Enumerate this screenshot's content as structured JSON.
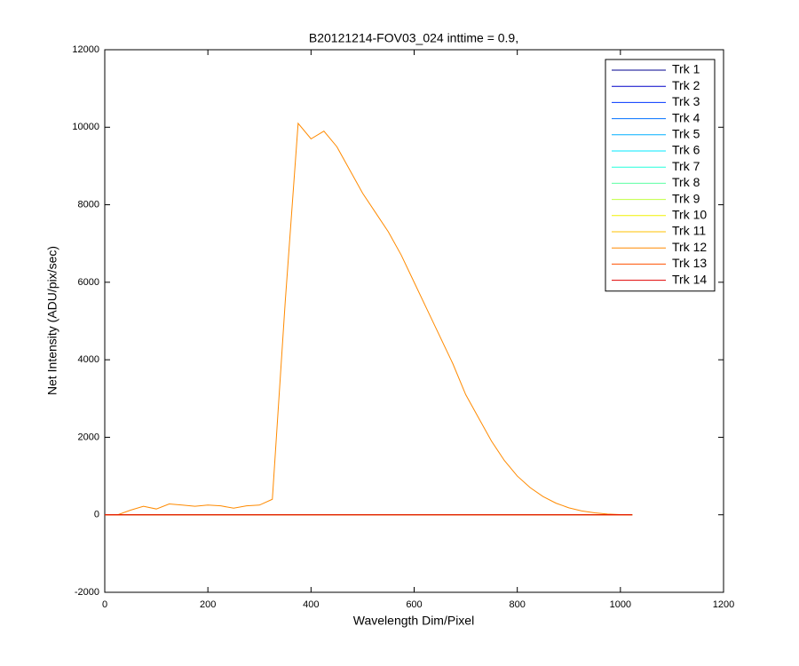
{
  "chart_data": {
    "type": "line",
    "title": "B20121214-FOV03_024 inttime = 0.9,",
    "x_label": "Wavelength Dim/Pixel",
    "y_label": "Net Intensity (ADU/pix/sec)",
    "xlim": [
      0,
      1200
    ],
    "xticks": [
      0,
      200,
      400,
      600,
      800,
      1000,
      1200
    ],
    "ylim": [
      -2000,
      12000
    ],
    "yticks": [
      -2000,
      0,
      2000,
      4000,
      6000,
      8000,
      10000,
      12000
    ],
    "legend_position": "upper-right",
    "x": [
      0,
      25,
      50,
      75,
      100,
      125,
      150,
      175,
      200,
      225,
      250,
      275,
      300,
      325,
      350,
      375,
      400,
      425,
      450,
      475,
      500,
      525,
      550,
      575,
      600,
      625,
      650,
      675,
      700,
      725,
      750,
      775,
      800,
      825,
      850,
      875,
      900,
      925,
      950,
      975,
      1000,
      1023
    ],
    "series": [
      {
        "name": "Trk 1",
        "color": "#00008f",
        "values": [
          0,
          0,
          0,
          0,
          0,
          0,
          0,
          0,
          0,
          0,
          0,
          0,
          0,
          0,
          0,
          0,
          0,
          0,
          0,
          0,
          0,
          0,
          0,
          0,
          0,
          0,
          0,
          0,
          0,
          0,
          0,
          0,
          0,
          0,
          0,
          0,
          0,
          0,
          0,
          0,
          0,
          0
        ]
      },
      {
        "name": "Trk 2",
        "color": "#0000c8",
        "values": [
          0,
          0,
          0,
          0,
          0,
          0,
          0,
          0,
          0,
          0,
          0,
          0,
          0,
          0,
          0,
          0,
          0,
          0,
          0,
          0,
          0,
          0,
          0,
          0,
          0,
          0,
          0,
          0,
          0,
          0,
          0,
          0,
          0,
          0,
          0,
          0,
          0,
          0,
          0,
          0,
          0,
          0
        ]
      },
      {
        "name": "Trk 3",
        "color": "#0036ff",
        "values": [
          0,
          0,
          0,
          0,
          0,
          0,
          0,
          0,
          0,
          0,
          0,
          0,
          0,
          0,
          0,
          0,
          0,
          0,
          0,
          0,
          0,
          0,
          0,
          0,
          0,
          0,
          0,
          0,
          0,
          0,
          0,
          0,
          0,
          0,
          0,
          0,
          0,
          0,
          0,
          0,
          0,
          0
        ]
      },
      {
        "name": "Trk 4",
        "color": "#0070ff",
        "values": [
          0,
          0,
          0,
          0,
          0,
          0,
          0,
          0,
          0,
          0,
          0,
          0,
          0,
          0,
          0,
          0,
          0,
          0,
          0,
          0,
          0,
          0,
          0,
          0,
          0,
          0,
          0,
          0,
          0,
          0,
          0,
          0,
          0,
          0,
          0,
          0,
          0,
          0,
          0,
          0,
          0,
          0
        ]
      },
      {
        "name": "Trk 5",
        "color": "#00afff",
        "values": [
          0,
          0,
          0,
          0,
          0,
          0,
          0,
          0,
          0,
          0,
          0,
          0,
          0,
          0,
          0,
          0,
          0,
          0,
          0,
          0,
          0,
          0,
          0,
          0,
          0,
          0,
          0,
          0,
          0,
          0,
          0,
          0,
          0,
          0,
          0,
          0,
          0,
          0,
          0,
          0,
          0,
          0
        ]
      },
      {
        "name": "Trk 6",
        "color": "#00e8ff",
        "values": [
          0,
          0,
          0,
          0,
          0,
          0,
          0,
          0,
          0,
          0,
          0,
          0,
          0,
          0,
          0,
          0,
          0,
          0,
          0,
          0,
          0,
          0,
          0,
          0,
          0,
          0,
          0,
          0,
          0,
          0,
          0,
          0,
          0,
          0,
          0,
          0,
          0,
          0,
          0,
          0,
          0,
          0
        ]
      },
      {
        "name": "Trk 7",
        "color": "#24ffdb",
        "values": [
          0,
          0,
          0,
          0,
          0,
          0,
          0,
          0,
          0,
          0,
          0,
          0,
          0,
          0,
          0,
          0,
          0,
          0,
          0,
          0,
          0,
          0,
          0,
          0,
          0,
          0,
          0,
          0,
          0,
          0,
          0,
          0,
          0,
          0,
          0,
          0,
          0,
          0,
          0,
          0,
          0,
          0
        ]
      },
      {
        "name": "Trk 8",
        "color": "#5cffa3",
        "values": [
          0,
          0,
          0,
          0,
          0,
          0,
          0,
          0,
          0,
          0,
          0,
          0,
          0,
          0,
          0,
          0,
          0,
          0,
          0,
          0,
          0,
          0,
          0,
          0,
          0,
          0,
          0,
          0,
          0,
          0,
          0,
          0,
          0,
          0,
          0,
          0,
          0,
          0,
          0,
          0,
          0,
          0
        ]
      },
      {
        "name": "Trk 9",
        "color": "#c0ff40",
        "values": [
          0,
          0,
          0,
          0,
          0,
          0,
          0,
          0,
          0,
          0,
          0,
          0,
          0,
          0,
          0,
          0,
          0,
          0,
          0,
          0,
          0,
          0,
          0,
          0,
          0,
          0,
          0,
          0,
          0,
          0,
          0,
          0,
          0,
          0,
          0,
          0,
          0,
          0,
          0,
          0,
          0,
          0
        ]
      },
      {
        "name": "Trk 10",
        "color": "#f0f000",
        "values": [
          0,
          0,
          0,
          0,
          0,
          0,
          0,
          0,
          0,
          0,
          0,
          0,
          0,
          0,
          0,
          0,
          0,
          0,
          0,
          0,
          0,
          0,
          0,
          0,
          0,
          0,
          0,
          0,
          0,
          0,
          0,
          0,
          0,
          0,
          0,
          0,
          0,
          0,
          0,
          0,
          0,
          0
        ]
      },
      {
        "name": "Trk 11",
        "color": "#ffc000",
        "values": [
          0,
          0,
          0,
          0,
          0,
          0,
          0,
          0,
          0,
          0,
          0,
          0,
          0,
          0,
          0,
          0,
          0,
          0,
          0,
          0,
          0,
          0,
          0,
          0,
          0,
          0,
          0,
          0,
          0,
          0,
          0,
          0,
          0,
          0,
          0,
          0,
          0,
          0,
          0,
          0,
          0,
          0
        ]
      },
      {
        "name": "Trk 12",
        "color": "#ff8a00",
        "values": [
          0,
          0,
          120,
          220,
          150,
          280,
          250,
          220,
          250,
          230,
          170,
          230,
          250,
          400,
          5500,
          10100,
          9700,
          9900,
          9500,
          8900,
          8300,
          7800,
          7300,
          6700,
          6000,
          5300,
          4600,
          3900,
          3100,
          2500,
          1900,
          1400,
          1000,
          700,
          470,
          300,
          180,
          100,
          50,
          20,
          5,
          0
        ]
      },
      {
        "name": "Trk 13",
        "color": "#ff5000",
        "values": [
          0,
          0,
          0,
          0,
          0,
          0,
          0,
          0,
          0,
          0,
          0,
          0,
          0,
          0,
          0,
          0,
          0,
          0,
          0,
          0,
          0,
          0,
          0,
          0,
          0,
          0,
          0,
          0,
          0,
          0,
          0,
          0,
          0,
          0,
          0,
          0,
          0,
          0,
          0,
          0,
          0,
          0
        ]
      },
      {
        "name": "Trk 14",
        "color": "#e00000",
        "values": [
          0,
          0,
          0,
          0,
          0,
          0,
          0,
          0,
          0,
          0,
          0,
          0,
          0,
          0,
          0,
          0,
          0,
          0,
          0,
          0,
          0,
          0,
          0,
          0,
          0,
          0,
          0,
          0,
          0,
          0,
          0,
          0,
          0,
          0,
          0,
          0,
          0,
          0,
          0,
          0,
          0,
          0
        ]
      }
    ]
  }
}
